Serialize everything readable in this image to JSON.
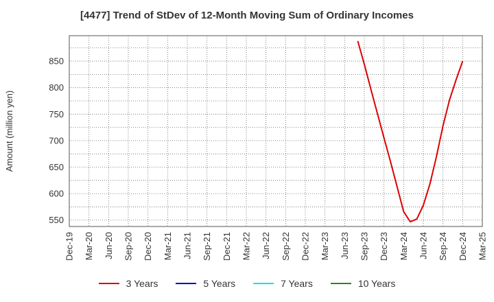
{
  "chart_data": {
    "type": "line",
    "title": "[4477]  Trend of StDev of 12-Month Moving Sum of Ordinary Incomes",
    "ylabel": "Amount (million yen)",
    "xlabel": "",
    "x_ticks": [
      "Dec-19",
      "Mar-20",
      "Jun-20",
      "Sep-20",
      "Dec-20",
      "Mar-21",
      "Jun-21",
      "Sep-21",
      "Dec-21",
      "Mar-22",
      "Jun-22",
      "Sep-22",
      "Dec-22",
      "Mar-23",
      "Jun-23",
      "Sep-23",
      "Dec-23",
      "Mar-24",
      "Jun-24",
      "Sep-24",
      "Dec-24",
      "Mar-25"
    ],
    "y_ticks": [
      550,
      600,
      650,
      700,
      750,
      800,
      850
    ],
    "ylim": [
      538,
      898
    ],
    "grid": true,
    "legend_position": "bottom",
    "series": [
      {
        "name": "3 Years",
        "color": "#dd0000",
        "points": [
          {
            "x": "Aug-23",
            "y": 888
          },
          {
            "x": "Sep-23",
            "y": 844
          },
          {
            "x": "Oct-23",
            "y": 797
          },
          {
            "x": "Nov-23",
            "y": 751
          },
          {
            "x": "Dec-23",
            "y": 705
          },
          {
            "x": "Jan-24",
            "y": 660
          },
          {
            "x": "Feb-24",
            "y": 613
          },
          {
            "x": "Mar-24",
            "y": 566
          },
          {
            "x": "Apr-24",
            "y": 547
          },
          {
            "x": "May-24",
            "y": 552
          },
          {
            "x": "Jun-24",
            "y": 578
          },
          {
            "x": "Jul-24",
            "y": 618
          },
          {
            "x": "Aug-24",
            "y": 670
          },
          {
            "x": "Sep-24",
            "y": 728
          },
          {
            "x": "Oct-24",
            "y": 777
          },
          {
            "x": "Nov-24",
            "y": 815
          },
          {
            "x": "Dec-24",
            "y": 850
          }
        ]
      },
      {
        "name": "5 Years",
        "color": "#0000cc",
        "points": []
      },
      {
        "name": "7 Years",
        "color": "#00e5ee",
        "points": []
      },
      {
        "name": "10 Years",
        "color": "#228b22",
        "points": []
      }
    ]
  }
}
